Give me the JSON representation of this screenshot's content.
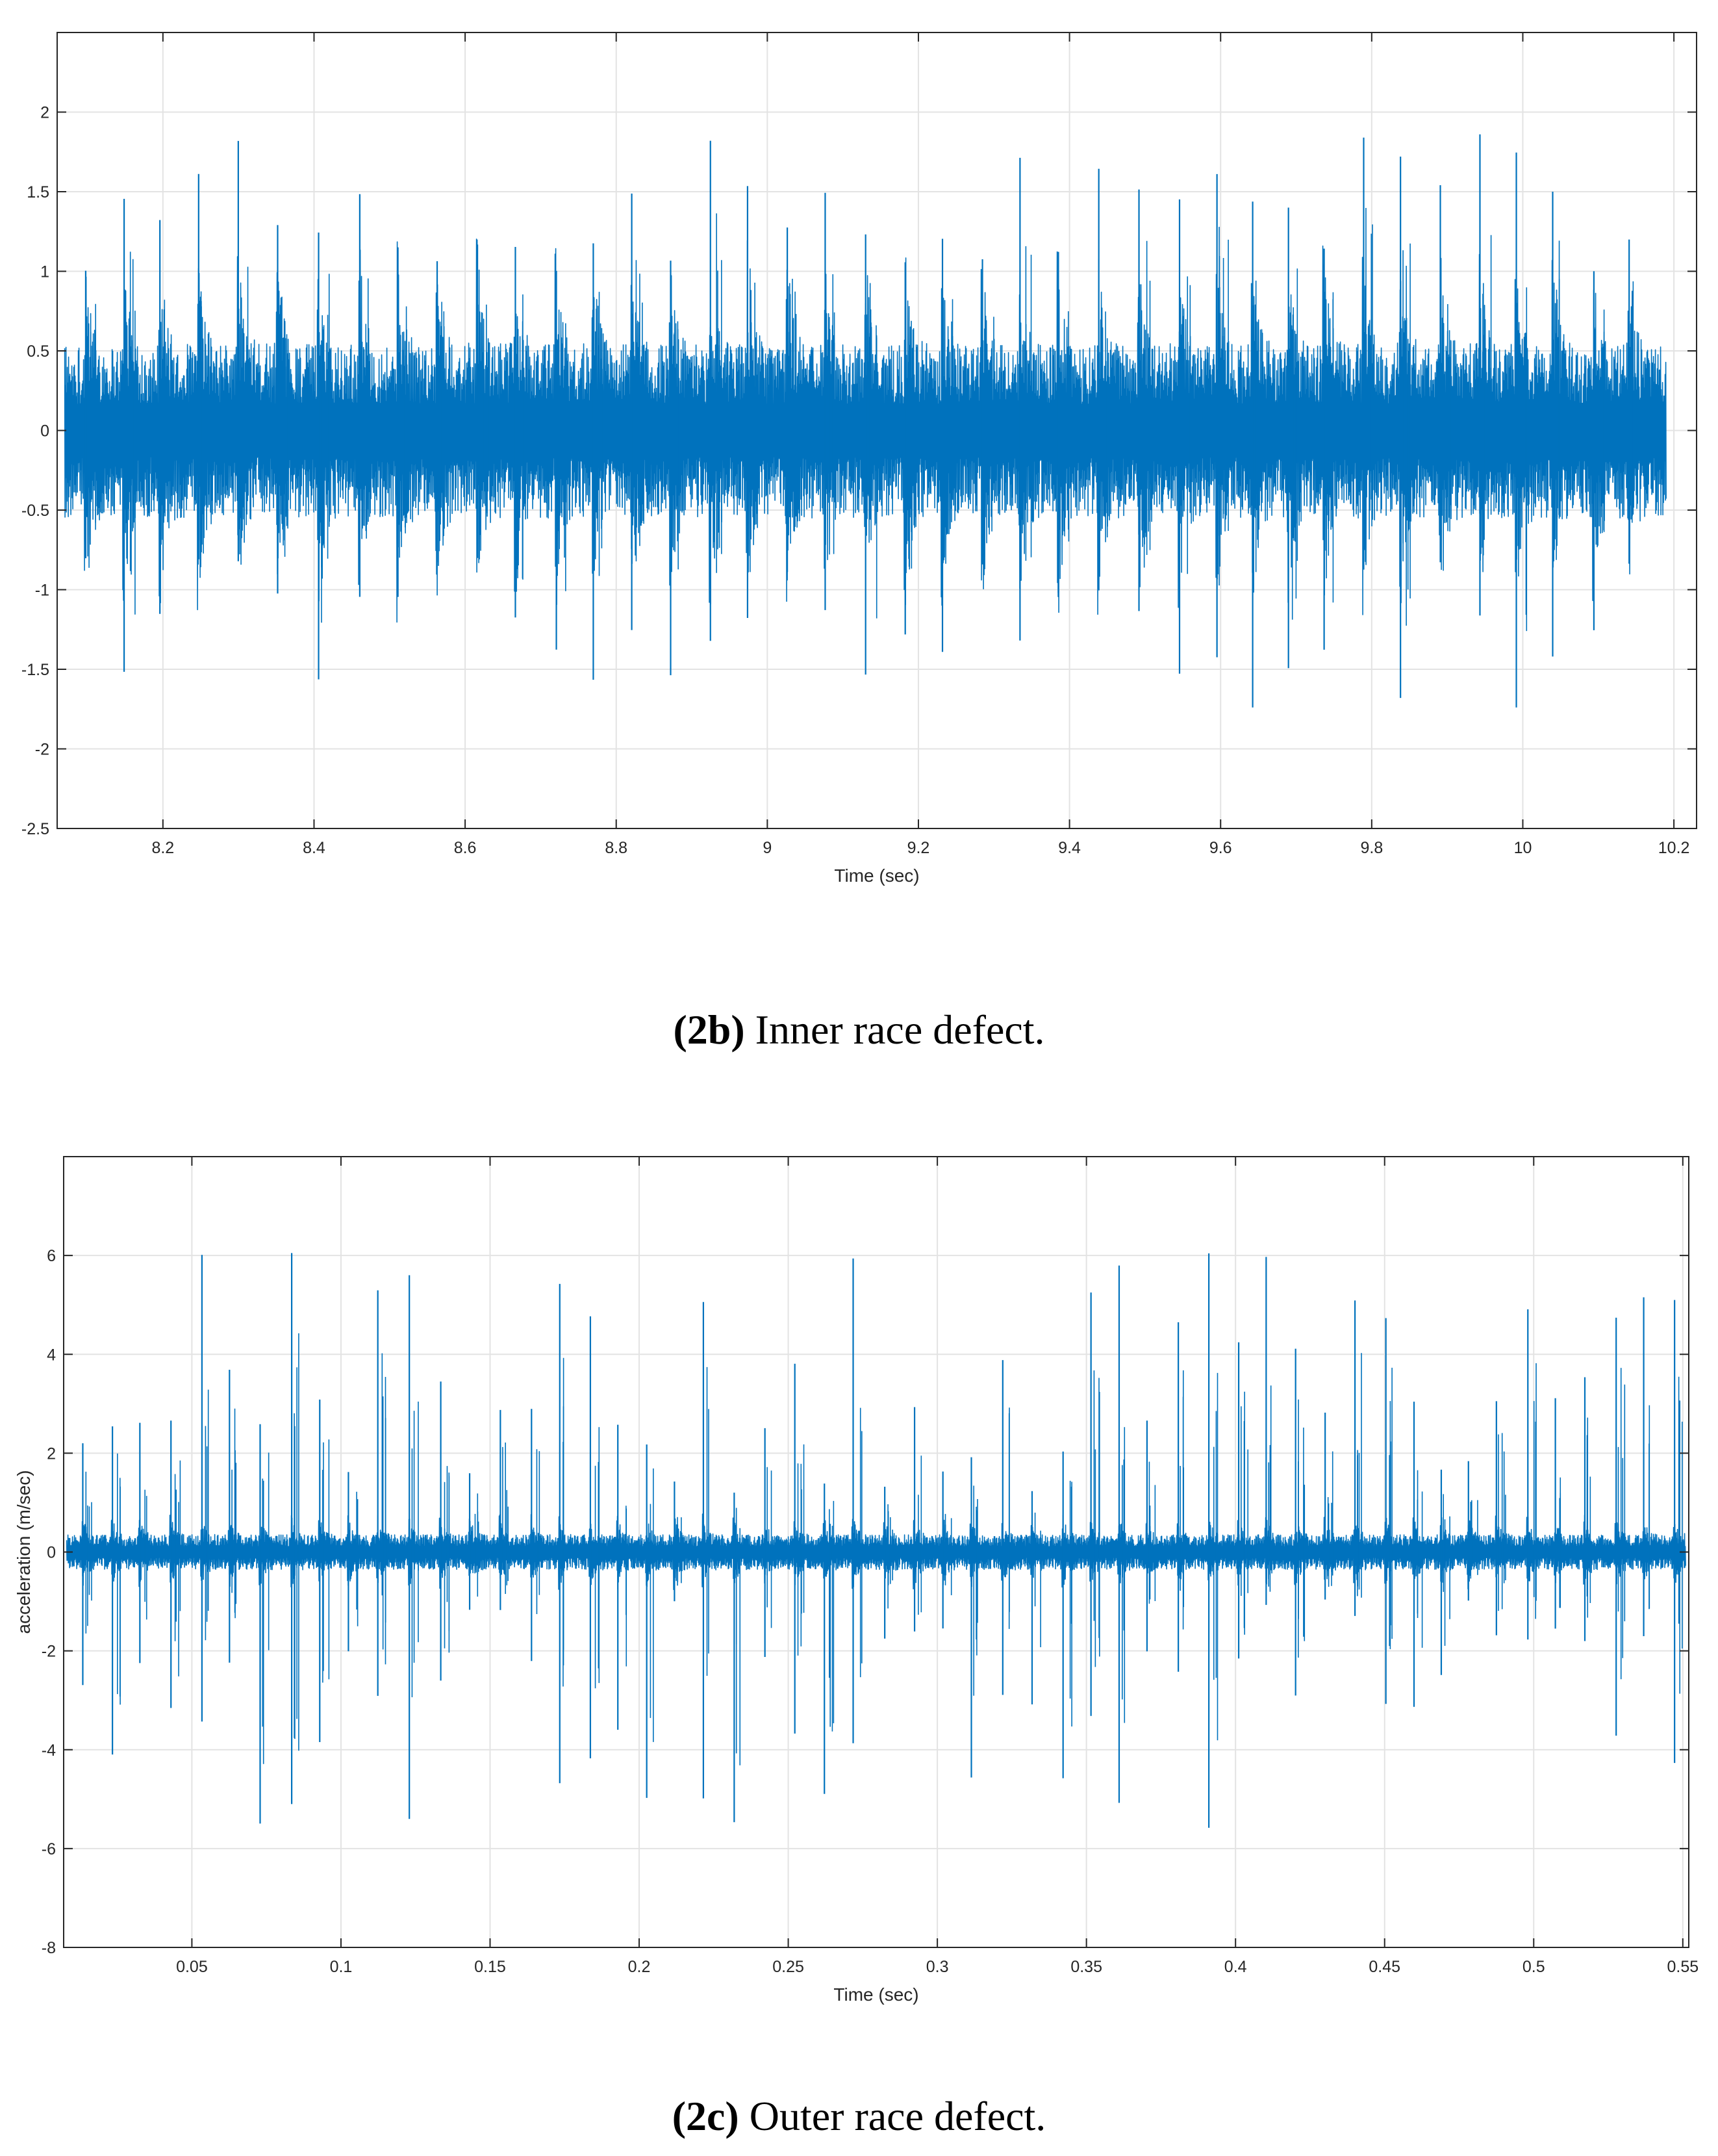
{
  "charts": [
    {
      "id": "2b",
      "caption_tag": "(2b)",
      "caption_text": " Inner race defect.",
      "chart_data": {
        "type": "line",
        "xlabel": "Time (sec)",
        "ylabel": "",
        "xlim": [
          8.06,
          10.23
        ],
        "ylim": [
          -2.5,
          2.5
        ],
        "x_ticks": [
          "8.2",
          "8.4",
          "8.6",
          "8.8",
          "9",
          "9.2",
          "9.4",
          "9.6",
          "9.8",
          "10",
          "10.2"
        ],
        "y_ticks": [
          "-2.5",
          "-2",
          "-1.5",
          "-1",
          "-0.5",
          "0",
          "0.5",
          "1",
          "1.5",
          "2"
        ],
        "grid": true,
        "line_color": "#0072BD",
        "signal": {
          "x_start": 8.07,
          "x_end": 10.19,
          "noise_amplitude": 0.55,
          "impulse_period": 0.0505,
          "impulse_peak_range": [
            1.0,
            1.86
          ],
          "notable_peaks": [
            {
              "x": 9.78,
              "y": 1.84
            },
            {
              "x": 9.96,
              "y": 1.86
            },
            {
              "x": 8.92,
              "y": 1.82
            },
            {
              "x": 9.62,
              "y": -1.74
            },
            {
              "x": 9.98,
              "y": -1.74
            },
            {
              "x": 9.83,
              "y": -1.68
            }
          ]
        }
      }
    },
    {
      "id": "2c",
      "caption_tag": "(2c)",
      "caption_text": " Outer race defect.",
      "chart_data": {
        "type": "line",
        "xlabel": "Time (sec)",
        "ylabel": "acceleration (m/sec)",
        "xlim": [
          0.007,
          0.552
        ],
        "ylim": [
          -8,
          8
        ],
        "x_ticks": [
          "0.05",
          "0.1",
          "0.15",
          "0.2",
          "0.25",
          "0.3",
          "0.35",
          "0.4",
          "0.45",
          "0.5",
          "0.55"
        ],
        "y_ticks": [
          "-8",
          "-6",
          "-4",
          "-2",
          "0",
          "2",
          "4",
          "6"
        ],
        "grid": true,
        "line_color": "#0072BD",
        "signal": {
          "x_start": 0.008,
          "x_end": 0.551,
          "noise_amplitude": 0.35,
          "impulse_period": 0.00985,
          "impulse_peak_range": [
            1.2,
            6.1
          ],
          "notable_peaks": [
            {
              "x": 0.088,
              "y": 6.05
            },
            {
              "x": 0.121,
              "y": 5.6
            },
            {
              "x": 0.355,
              "y": 5.25
            },
            {
              "x": 0.549,
              "y": 5.1
            },
            {
              "x": 0.121,
              "y": -5.4
            },
            {
              "x": 0.088,
              "y": -5.1
            },
            {
              "x": 0.08,
              "y": -5.05
            }
          ]
        }
      }
    }
  ]
}
